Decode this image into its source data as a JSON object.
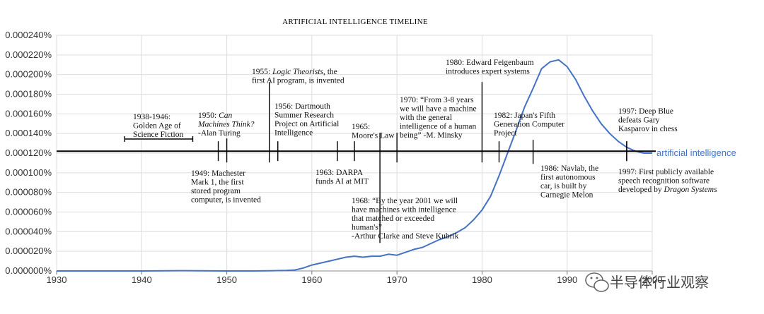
{
  "chart_data": {
    "type": "line",
    "title": "ARTIFICIAL INTELLIGENCE TIMELINE",
    "xlabel": "",
    "ylabel": "",
    "xlim": [
      1930,
      2000
    ],
    "ylim": [
      0,
      0.00024
    ],
    "x_ticks": [
      "1930",
      "1940",
      "1950",
      "1960",
      "1970",
      "1980",
      "1990",
      "2000"
    ],
    "y_ticks": [
      "0.000000%",
      "0.000020%",
      "0.000040%",
      "0.000060%",
      "0.000080%",
      "0.000100%",
      "0.000120%",
      "0.000140%",
      "0.000160%",
      "0.000180%",
      "0.000200%",
      "0.000220%",
      "0.000240%"
    ],
    "grid": true,
    "colors": {
      "series": "#4472c4",
      "axis": "#000000",
      "grid": "#dddddd"
    },
    "series": [
      {
        "name": "artificial intelligence",
        "x": [
          1930,
          1935,
          1940,
          1945,
          1950,
          1953,
          1955,
          1957,
          1958,
          1959,
          1960,
          1961,
          1962,
          1963,
          1964,
          1965,
          1966,
          1967,
          1968,
          1969,
          1970,
          1971,
          1972,
          1973,
          1974,
          1975,
          1976,
          1977,
          1978,
          1979,
          1980,
          1981,
          1982,
          1983,
          1984,
          1985,
          1986,
          1987,
          1988,
          1989,
          1990,
          1991,
          1992,
          1993,
          1994,
          1995,
          1996,
          1997,
          1998,
          1999,
          2000
        ],
        "y": [
          0,
          0,
          0,
          3e-07,
          0,
          0,
          2e-07,
          5e-07,
          1e-06,
          3e-06,
          6e-06,
          8e-06,
          1e-05,
          1.2e-05,
          1.4e-05,
          1.5e-05,
          1.4e-05,
          1.5e-05,
          1.5e-05,
          1.7e-05,
          1.6e-05,
          1.9e-05,
          2.2e-05,
          2.4e-05,
          2.8e-05,
          3.2e-05,
          3.5e-05,
          3.9e-05,
          4.4e-05,
          5.2e-05,
          6.2e-05,
          7.6e-05,
          9.7e-05,
          0.00012,
          0.000143,
          0.000167,
          0.000186,
          0.000206,
          0.000213,
          0.000215,
          0.000208,
          0.000195,
          0.000178,
          0.000163,
          0.00015,
          0.00014,
          0.000132,
          0.000126,
          0.000122,
          0.00012,
          0.00012
        ]
      }
    ],
    "reference_line": {
      "y": 0.000122
    },
    "annotations": [
      {
        "text_lines": [
          "1938-1946:",
          "Golden Age of",
          "Science Fiction"
        ],
        "year_range": [
          1938,
          1946
        ],
        "position": "above"
      },
      {
        "text_lines": [
          "1950: Can",
          "Machines Think?",
          "-Alan Turing"
        ],
        "year": 1950,
        "position": "above"
      },
      {
        "text_lines": [
          "1949: Machester",
          "Mark 1, the first",
          "stored program",
          "computer, is invented"
        ],
        "year": 1949,
        "position": "below"
      },
      {
        "text_lines": [
          "1955: Logic Theorists, the",
          "first AI program, is invented"
        ],
        "year": 1955,
        "position": "above"
      },
      {
        "text_lines": [
          "1956: Dartmouth",
          "Summer Research",
          "Project on Artificial",
          "Intelligence"
        ],
        "year": 1956,
        "position": "above"
      },
      {
        "text_lines": [
          "1963: DARPA",
          "funds AI at MIT"
        ],
        "year": 1963,
        "position": "below"
      },
      {
        "text_lines": [
          "1965:",
          "Moore's Law"
        ],
        "year": 1965,
        "position": "above"
      },
      {
        "text_lines": [
          "1968: “By the year 2001 we will",
          "have machines with intelligence",
          "that matched or exceeded",
          "human's”",
          "-Arthur Clarke and Steve Kubrik"
        ],
        "year": 1968,
        "position": "below"
      },
      {
        "text_lines": [
          "1970: “From 3-8 years",
          "we will have a machine",
          "with the general",
          "intelligence of a human",
          "being” -M. Minsky"
        ],
        "year": 1970,
        "position": "above"
      },
      {
        "text_lines": [
          "1980: Edward Feigenbaum",
          "introduces expert systems"
        ],
        "year": 1980,
        "position": "above"
      },
      {
        "text_lines": [
          "1982: Japan's Fifth",
          "Generation Computer",
          "Project"
        ],
        "year": 1982,
        "position": "above"
      },
      {
        "text_lines": [
          "1986: Navlab, the",
          "first autonomous",
          "car, is built by",
          "Carnegie Melon"
        ],
        "year": 1986,
        "position": "below"
      },
      {
        "text_lines": [
          "1997: Deep Blue",
          "defeats Gary",
          "Kasparov in chess"
        ],
        "year": 1997,
        "position": "above"
      },
      {
        "text_lines": [
          "1997: First publicly available",
          "speech recognition software",
          "developed by Dragon Systems"
        ],
        "year": 1997,
        "position": "below"
      }
    ]
  },
  "watermark": {
    "text": "半导体行业观察",
    "icon": "wechat-icon"
  }
}
